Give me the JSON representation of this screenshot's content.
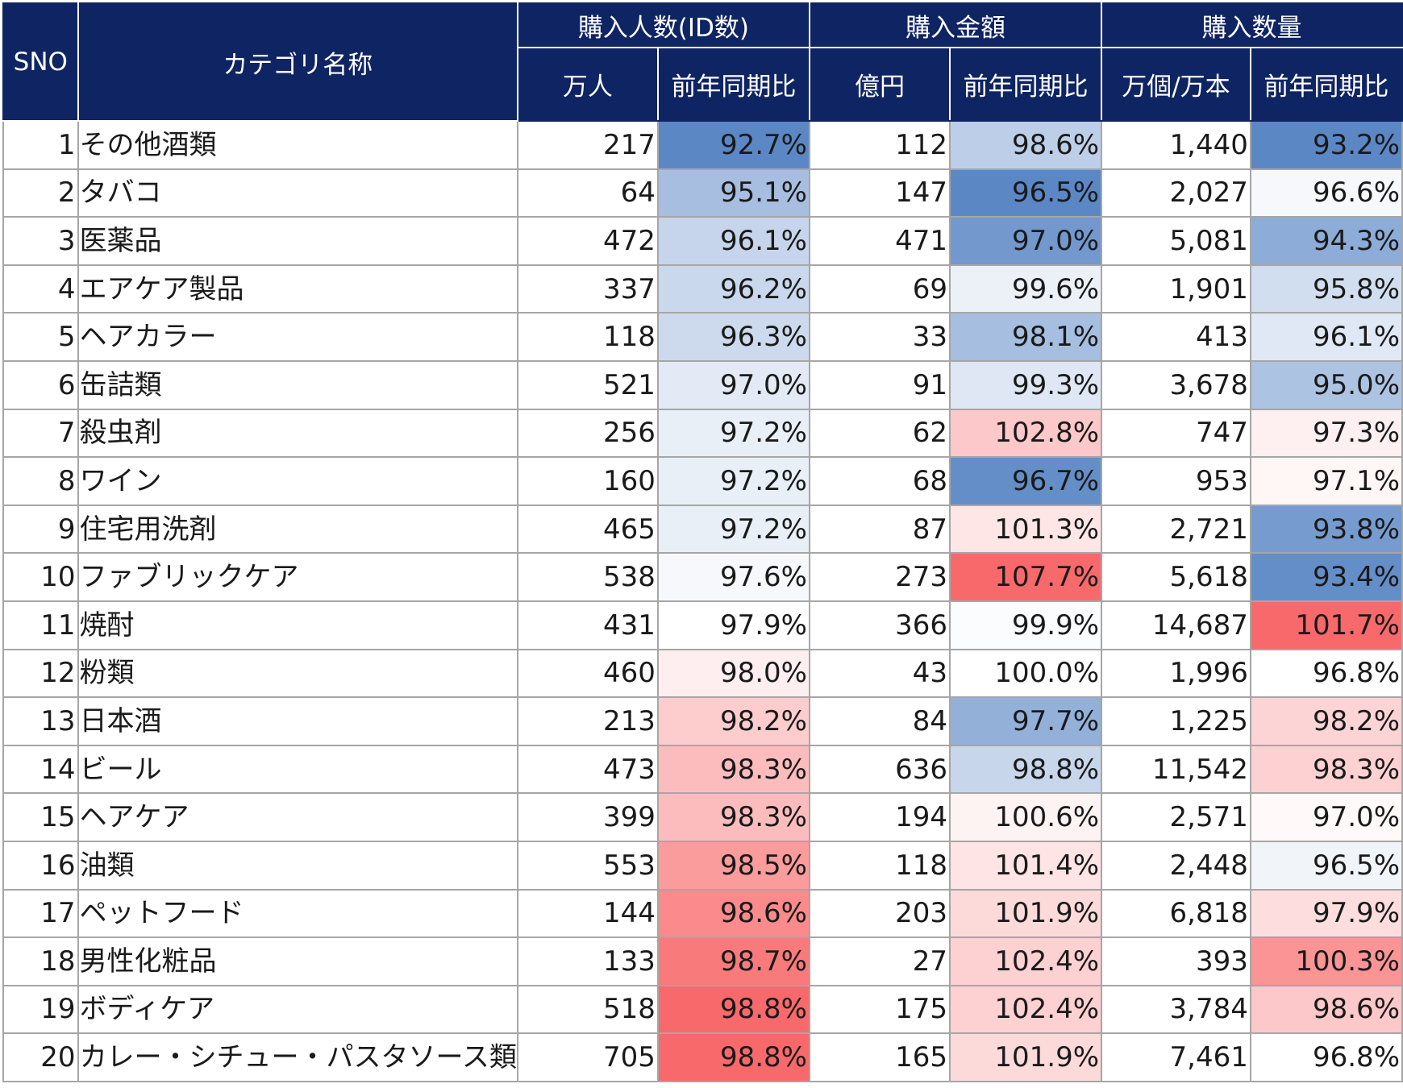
{
  "table": {
    "headers": {
      "sno": "SNO",
      "category": "カテゴリ名称",
      "groups": [
        "購入人数(ID数)",
        "購入金額",
        "購入数量"
      ],
      "subheaders": [
        "万人",
        "前年同期比",
        "億円",
        "前年同期比",
        "万個/万本",
        "前年同期比"
      ]
    },
    "rows": [
      {
        "sno": "1",
        "name": "その他酒類",
        "buyers": "217",
        "buyers_yoy": "92.7%",
        "amount": "112",
        "amount_yoy": "98.6%",
        "qty": "1,440",
        "qty_yoy": "93.2%"
      },
      {
        "sno": "2",
        "name": "タバコ",
        "buyers": "64",
        "buyers_yoy": "95.1%",
        "amount": "147",
        "amount_yoy": "96.5%",
        "qty": "2,027",
        "qty_yoy": "96.6%"
      },
      {
        "sno": "3",
        "name": "医薬品",
        "buyers": "472",
        "buyers_yoy": "96.1%",
        "amount": "471",
        "amount_yoy": "97.0%",
        "qty": "5,081",
        "qty_yoy": "94.3%"
      },
      {
        "sno": "4",
        "name": "エアケア製品",
        "buyers": "337",
        "buyers_yoy": "96.2%",
        "amount": "69",
        "amount_yoy": "99.6%",
        "qty": "1,901",
        "qty_yoy": "95.8%"
      },
      {
        "sno": "5",
        "name": "ヘアカラー",
        "buyers": "118",
        "buyers_yoy": "96.3%",
        "amount": "33",
        "amount_yoy": "98.1%",
        "qty": "413",
        "qty_yoy": "96.1%"
      },
      {
        "sno": "6",
        "name": "缶詰類",
        "buyers": "521",
        "buyers_yoy": "97.0%",
        "amount": "91",
        "amount_yoy": "99.3%",
        "qty": "3,678",
        "qty_yoy": "95.0%"
      },
      {
        "sno": "7",
        "name": "殺虫剤",
        "buyers": "256",
        "buyers_yoy": "97.2%",
        "amount": "62",
        "amount_yoy": "102.8%",
        "qty": "747",
        "qty_yoy": "97.3%"
      },
      {
        "sno": "8",
        "name": "ワイン",
        "buyers": "160",
        "buyers_yoy": "97.2%",
        "amount": "68",
        "amount_yoy": "96.7%",
        "qty": "953",
        "qty_yoy": "97.1%"
      },
      {
        "sno": "9",
        "name": "住宅用洗剤",
        "buyers": "465",
        "buyers_yoy": "97.2%",
        "amount": "87",
        "amount_yoy": "101.3%",
        "qty": "2,721",
        "qty_yoy": "93.8%"
      },
      {
        "sno": "10",
        "name": "ファブリックケア",
        "buyers": "538",
        "buyers_yoy": "97.6%",
        "amount": "273",
        "amount_yoy": "107.7%",
        "qty": "5,618",
        "qty_yoy": "93.4%"
      },
      {
        "sno": "11",
        "name": "焼酎",
        "buyers": "431",
        "buyers_yoy": "97.9%",
        "amount": "366",
        "amount_yoy": "99.9%",
        "qty": "14,687",
        "qty_yoy": "101.7%"
      },
      {
        "sno": "12",
        "name": "粉類",
        "buyers": "460",
        "buyers_yoy": "98.0%",
        "amount": "43",
        "amount_yoy": "100.0%",
        "qty": "1,996",
        "qty_yoy": "96.8%"
      },
      {
        "sno": "13",
        "name": "日本酒",
        "buyers": "213",
        "buyers_yoy": "98.2%",
        "amount": "84",
        "amount_yoy": "97.7%",
        "qty": "1,225",
        "qty_yoy": "98.2%"
      },
      {
        "sno": "14",
        "name": "ビール",
        "buyers": "473",
        "buyers_yoy": "98.3%",
        "amount": "636",
        "amount_yoy": "98.8%",
        "qty": "11,542",
        "qty_yoy": "98.3%"
      },
      {
        "sno": "15",
        "name": "ヘアケア",
        "buyers": "399",
        "buyers_yoy": "98.3%",
        "amount": "194",
        "amount_yoy": "100.6%",
        "qty": "2,571",
        "qty_yoy": "97.0%"
      },
      {
        "sno": "16",
        "name": "油類",
        "buyers": "553",
        "buyers_yoy": "98.5%",
        "amount": "118",
        "amount_yoy": "101.4%",
        "qty": "2,448",
        "qty_yoy": "96.5%"
      },
      {
        "sno": "17",
        "name": "ペットフード",
        "buyers": "144",
        "buyers_yoy": "98.6%",
        "amount": "203",
        "amount_yoy": "101.9%",
        "qty": "6,818",
        "qty_yoy": "97.9%"
      },
      {
        "sno": "18",
        "name": "男性化粧品",
        "buyers": "133",
        "buyers_yoy": "98.7%",
        "amount": "27",
        "amount_yoy": "102.4%",
        "qty": "393",
        "qty_yoy": "100.3%"
      },
      {
        "sno": "19",
        "name": "ボディケア",
        "buyers": "518",
        "buyers_yoy": "98.8%",
        "amount": "175",
        "amount_yoy": "102.4%",
        "qty": "3,784",
        "qty_yoy": "98.6%"
      },
      {
        "sno": "20",
        "name": "カレー・シチュー・パスタソース類",
        "buyers": "705",
        "buyers_yoy": "98.8%",
        "amount": "165",
        "amount_yoy": "101.9%",
        "qty": "7,461",
        "qty_yoy": "96.8%"
      }
    ]
  },
  "colors": {
    "header_bg": "#0f2463",
    "header_text": "#ffffff",
    "grid": "#a6a6a6",
    "scale_low": "#5b87c5",
    "scale_mid": "#ffffff",
    "scale_high": "#f8696b"
  }
}
